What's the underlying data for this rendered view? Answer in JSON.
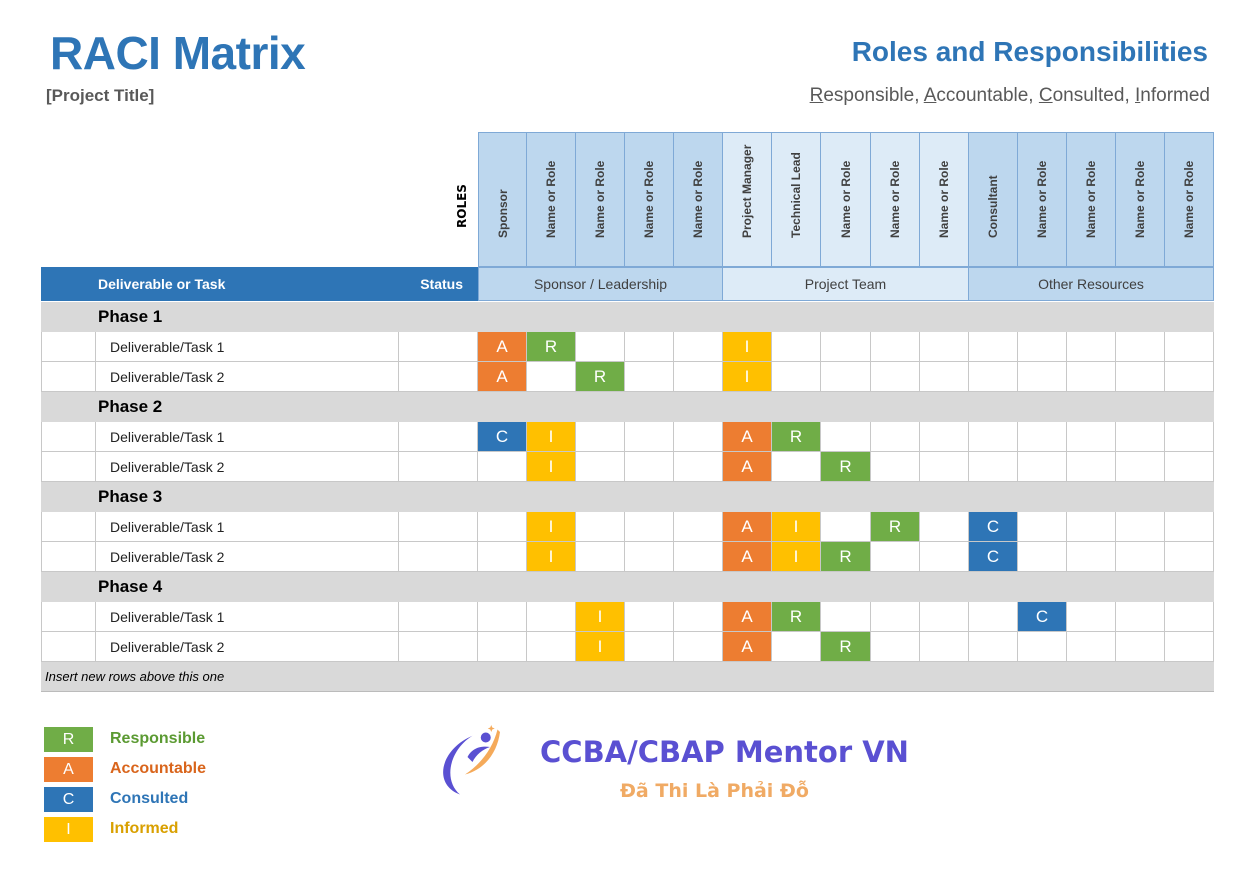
{
  "header": {
    "title": "RACI Matrix",
    "project_title": "[Project Title]",
    "subtitle": "Roles and Responsibilities",
    "raci_words": [
      {
        "first": "R",
        "rest": "esponsible, "
      },
      {
        "first": "A",
        "rest": "ccountable, "
      },
      {
        "first": "C",
        "rest": "onsulted, "
      },
      {
        "first": "I",
        "rest": "nformed"
      }
    ]
  },
  "roles_label": "ROLES",
  "roles": [
    "Sponsor",
    "Name or Role",
    "Name or Role",
    "Name or Role",
    "Name or Role",
    "Project Manager",
    "Technical Lead",
    "Name or Role",
    "Name or Role",
    "Name or Role",
    "Consultant",
    "Name or Role",
    "Name or Role",
    "Name or Role",
    "Name or Role"
  ],
  "table_header": {
    "task": "Deliverable or Task",
    "status": "Status"
  },
  "groups": [
    {
      "label": "Sponsor / Leadership",
      "span": 5,
      "color": "#bdd7ee"
    },
    {
      "label": "Project Team",
      "span": 5,
      "color": "#ddebf7"
    },
    {
      "label": "Other Resources",
      "span": 5,
      "color": "#bdd7ee"
    }
  ],
  "phases": [
    {
      "name": "Phase 1",
      "tasks": [
        {
          "name": "Deliverable/Task 1",
          "status": "",
          "marks": [
            "A",
            "R",
            "",
            "",
            "",
            "I",
            "",
            "",
            "",
            "",
            "",
            "",
            "",
            "",
            ""
          ]
        },
        {
          "name": "Deliverable/Task 2",
          "status": "",
          "marks": [
            "A",
            "",
            "R",
            "",
            "",
            "I",
            "",
            "",
            "",
            "",
            "",
            "",
            "",
            "",
            ""
          ]
        }
      ]
    },
    {
      "name": "Phase 2",
      "tasks": [
        {
          "name": "Deliverable/Task 1",
          "status": "",
          "marks": [
            "C",
            "I",
            "",
            "",
            "",
            "A",
            "R",
            "",
            "",
            "",
            "",
            "",
            "",
            "",
            ""
          ]
        },
        {
          "name": "Deliverable/Task 2",
          "status": "",
          "marks": [
            "",
            "I",
            "",
            "",
            "",
            "A",
            "",
            "R",
            "",
            "",
            "",
            "",
            "",
            "",
            ""
          ]
        }
      ]
    },
    {
      "name": "Phase 3",
      "tasks": [
        {
          "name": "Deliverable/Task 1",
          "status": "",
          "marks": [
            "",
            "I",
            "",
            "",
            "",
            "A",
            "I",
            "",
            "R",
            "",
            "C",
            "",
            "",
            "",
            ""
          ]
        },
        {
          "name": "Deliverable/Task 2",
          "status": "",
          "marks": [
            "",
            "I",
            "",
            "",
            "",
            "A",
            "I",
            "R",
            "",
            "",
            "C",
            "",
            "",
            "",
            ""
          ]
        }
      ]
    },
    {
      "name": "Phase 4",
      "tasks": [
        {
          "name": "Deliverable/Task 1",
          "status": "",
          "marks": [
            "",
            "",
            "I",
            "",
            "",
            "A",
            "R",
            "",
            "",
            "",
            "",
            "C",
            "",
            "",
            ""
          ]
        },
        {
          "name": "Deliverable/Task 2",
          "status": "",
          "marks": [
            "",
            "",
            "I",
            "",
            "",
            "A",
            "",
            "R",
            "",
            "",
            "",
            "",
            "",
            "",
            ""
          ]
        }
      ]
    }
  ],
  "insert_note": "Insert new rows above this one",
  "legend": [
    {
      "code": "R",
      "label": "Responsible",
      "color": "#70ad47",
      "text": "#5b9a32"
    },
    {
      "code": "A",
      "label": "Accountable",
      "color": "#ed7d31",
      "text": "#d9651c"
    },
    {
      "code": "C",
      "label": "Consulted",
      "color": "#2e75b6",
      "text": "#2e75b6"
    },
    {
      "code": "I",
      "label": "Informed",
      "color": "#ffc000",
      "text": "#d9a000"
    }
  ],
  "mark_colors": {
    "R": "#70ad47",
    "A": "#ed7d31",
    "C": "#2e75b6",
    "I": "#ffc000"
  },
  "watermark": {
    "line1": "CCBA/CBAP Mentor VN",
    "line2": "Đã Thi Là Phải Đỗ"
  }
}
